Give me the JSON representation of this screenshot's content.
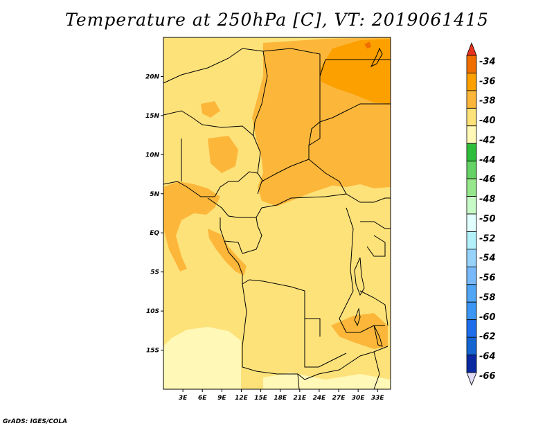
{
  "title": "Temperature at 250hPa [C], VT: 2019061415",
  "credit": "GrADS: IGES/COLA",
  "map": {
    "lat_ticks": [
      "20N",
      "15N",
      "10N",
      "5N",
      "EQ",
      "5S",
      "10S",
      "15S"
    ],
    "lon_ticks": [
      "3E",
      "6E",
      "9E",
      "12E",
      "15E",
      "18E",
      "21E",
      "24E",
      "27E",
      "30E",
      "33E"
    ],
    "lat_values": [
      20,
      15,
      10,
      5,
      0,
      -5,
      -10,
      -15
    ],
    "lon_values": [
      3,
      6,
      9,
      12,
      15,
      18,
      21,
      24,
      27,
      30,
      33
    ],
    "lon_range": [
      0,
      35
    ],
    "lat_range": [
      -20,
      25
    ]
  },
  "colorbar": {
    "labels": [
      "-34",
      "-36",
      "-38",
      "-40",
      "-42",
      "-44",
      "-46",
      "-48",
      "-50",
      "-52",
      "-54",
      "-56",
      "-58",
      "-60",
      "-62",
      "-64",
      "-66"
    ],
    "colors": [
      "#e6321e",
      "#f06e00",
      "#fca000",
      "#fcb73a",
      "#fde27a",
      "#fff8b6",
      "#2ebe3c",
      "#64d264",
      "#96e68c",
      "#c8fac8",
      "#e1ffff",
      "#b4f0fa",
      "#96d2fa",
      "#78b9fa",
      "#50a5f5",
      "#3c96f5",
      "#1e6eeb",
      "#1464d2",
      "#0a28a0"
    ],
    "arrow_bottom_color": "#e0dcf8"
  }
}
